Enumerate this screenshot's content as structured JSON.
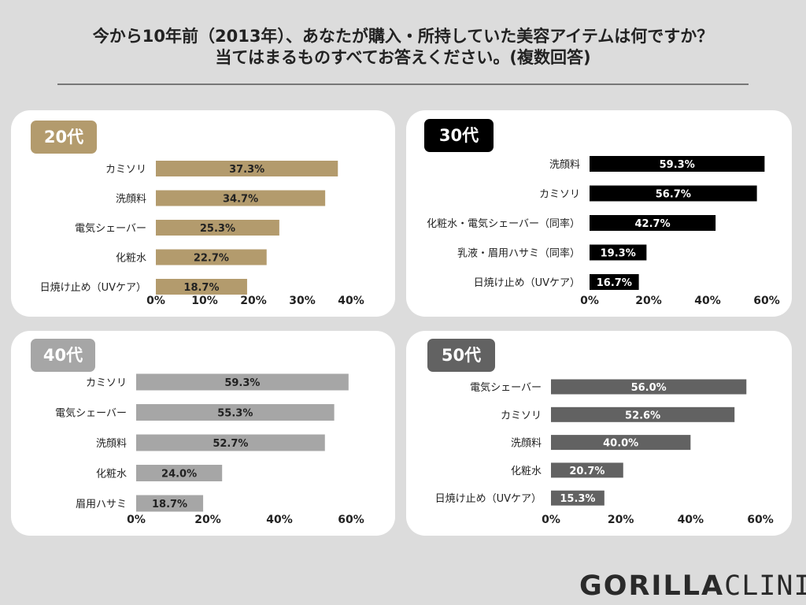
{
  "title": {
    "line1": "今から10年前（2013年）、あなたが購入・所持していた美容アイテムは何ですか？",
    "line2": "当てはまるものすべてお答えください。(複数回答)"
  },
  "brand": {
    "bold": "GORILLA",
    "light": "CLINIC"
  },
  "chart_data": [
    {
      "type": "bar",
      "orientation": "horizontal",
      "title": "20代",
      "categories": [
        "カミソリ",
        "洗顔料",
        "電気シェーバー",
        "化粧水",
        "日焼け止め（UVケア）"
      ],
      "values": [
        37.3,
        34.7,
        25.3,
        22.7,
        18.7
      ],
      "labels": [
        "37.3%",
        "34.7%",
        "25.3%",
        "22.7%",
        "18.7%"
      ],
      "ticks": [
        "0%",
        "10%",
        "20%",
        "30%",
        "40%"
      ],
      "xlim": [
        0,
        40
      ],
      "color": "#b39b6d",
      "badge_color": "#b39b6d",
      "label_color": "#222222"
    },
    {
      "type": "bar",
      "orientation": "horizontal",
      "title": "30代",
      "categories": [
        "洗顔料",
        "カミソリ",
        "化粧水・電気シェーバー（同率）",
        "乳液・眉用ハサミ（同率）",
        "日焼け止め（UVケア）"
      ],
      "values": [
        59.3,
        56.7,
        42.7,
        19.3,
        16.7
      ],
      "labels": [
        "59.3%",
        "56.7%",
        "42.7%",
        "19.3%",
        "16.7%"
      ],
      "ticks": [
        "0%",
        "20%",
        "40%",
        "60%"
      ],
      "xlim": [
        0,
        60
      ],
      "color": "#000000",
      "badge_color": "#000000",
      "label_color": "#ffffff"
    },
    {
      "type": "bar",
      "orientation": "horizontal",
      "title": "40代",
      "categories": [
        "カミソリ",
        "電気シェーバー",
        "洗顔料",
        "化粧水",
        "眉用ハサミ"
      ],
      "values": [
        59.3,
        55.3,
        52.7,
        24.0,
        18.7
      ],
      "labels": [
        "59.3%",
        "55.3%",
        "52.7%",
        "24.0%",
        "18.7%"
      ],
      "ticks": [
        "0%",
        "20%",
        "40%",
        "60%"
      ],
      "xlim": [
        0,
        60
      ],
      "color": "#a6a6a6",
      "badge_color": "#a6a6a6",
      "label_color": "#222222"
    },
    {
      "type": "bar",
      "orientation": "horizontal",
      "title": "50代",
      "categories": [
        "電気シェーバー",
        "カミソリ",
        "洗顔料",
        "化粧水",
        "日焼け止め（UVケア）"
      ],
      "values": [
        56.0,
        52.6,
        40.0,
        20.7,
        15.3
      ],
      "labels": [
        "56.0%",
        "52.6%",
        "40.0%",
        "20.7%",
        "15.3%"
      ],
      "ticks": [
        "0%",
        "20%",
        "40%",
        "60%"
      ],
      "xlim": [
        0,
        60
      ],
      "color": "#626262",
      "badge_color": "#626262",
      "label_color": "#ffffff"
    }
  ]
}
